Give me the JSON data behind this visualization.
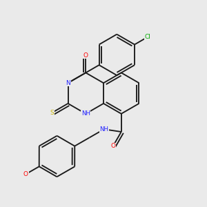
{
  "background_color": "#eaeaea",
  "atom_colors": {
    "O": "#ff0000",
    "N": "#2020ff",
    "S": "#c8b400",
    "Cl": "#00aa00",
    "C": "#1a1a1a",
    "H": "#1a1a1a"
  },
  "figsize": [
    3.0,
    3.0
  ],
  "dpi": 100,
  "bond_lw": 1.35,
  "font_size": 6.5,
  "bond_color": "#1a1a1a"
}
